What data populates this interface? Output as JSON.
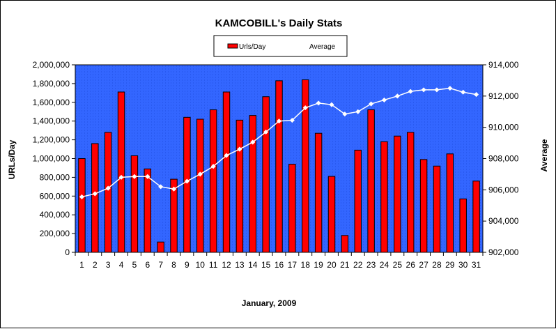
{
  "chart_data": {
    "type": "bar+line",
    "title": "KAMCOBILL's Daily Stats",
    "xlabel": "January, 2009",
    "ylabel": "URLs/Day",
    "y2label": "Average",
    "legend": {
      "placement": "top-center",
      "entries": [
        "Urls/Day",
        "Average"
      ]
    },
    "categories": [
      "1",
      "2",
      "3",
      "4",
      "5",
      "6",
      "7",
      "8",
      "9",
      "10",
      "11",
      "12",
      "13",
      "14",
      "15",
      "16",
      "17",
      "18",
      "19",
      "20",
      "21",
      "22",
      "23",
      "24",
      "25",
      "26",
      "27",
      "28",
      "29",
      "30",
      "31"
    ],
    "ylim": [
      0,
      2000000
    ],
    "y_ticks": [
      "0",
      "200,000",
      "400,000",
      "600,000",
      "800,000",
      "1,000,000",
      "1,200,000",
      "1,400,000",
      "1,600,000",
      "1,800,000",
      "2,000,000"
    ],
    "y2lim": [
      902000,
      914000
    ],
    "y2_ticks": [
      "902,000",
      "904,000",
      "906,000",
      "908,000",
      "910,000",
      "912,000",
      "914,000"
    ],
    "series": [
      {
        "name": "Urls/Day",
        "type": "bar",
        "axis": "left",
        "color": "#ff0000",
        "values": [
          1000000,
          1160000,
          1280000,
          1710000,
          1030000,
          890000,
          110000,
          780000,
          1440000,
          1420000,
          1520000,
          1710000,
          1410000,
          1460000,
          1660000,
          1830000,
          940000,
          1840000,
          1270000,
          810000,
          180000,
          1090000,
          1520000,
          1180000,
          1240000,
          1280000,
          990000,
          920000,
          1050000,
          570000,
          760000
        ]
      },
      {
        "name": "Average",
        "type": "line",
        "axis": "right",
        "color": "#ffffff",
        "values": [
          905550,
          905750,
          906100,
          906800,
          906850,
          906850,
          906200,
          906050,
          906550,
          907000,
          907500,
          908200,
          908600,
          909050,
          909700,
          910400,
          910450,
          911250,
          911550,
          911450,
          910850,
          911000,
          911500,
          911750,
          912000,
          912300,
          912400,
          912400,
          912500,
          912250,
          912100
        ]
      }
    ],
    "plot_background": "#3366ff",
    "grid": false
  }
}
